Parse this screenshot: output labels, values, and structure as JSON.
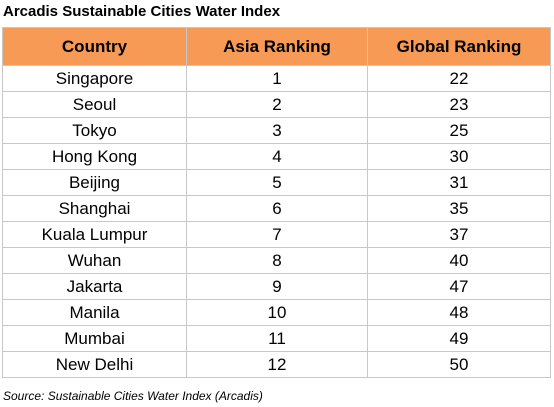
{
  "title": "Arcadis Sustainable Cities Water Index",
  "table": {
    "header": [
      "Country",
      "Asia Ranking",
      "Global Ranking"
    ],
    "rows": [
      [
        "Singapore",
        1,
        22
      ],
      [
        "Seoul",
        2,
        23
      ],
      [
        "Tokyo",
        3,
        25
      ],
      [
        "Hong Kong",
        4,
        30
      ],
      [
        "Beijing",
        5,
        31
      ],
      [
        "Shanghai",
        6,
        35
      ],
      [
        "Kuala Lumpur",
        7,
        37
      ],
      [
        "Wuhan",
        8,
        40
      ],
      [
        "Jakarta",
        9,
        47
      ],
      [
        "Manila",
        10,
        48
      ],
      [
        "Mumbai",
        11,
        49
      ],
      [
        "New Delhi",
        12,
        50
      ]
    ]
  },
  "source": "Source: Sustainable Cities Water Index (Arcadis)"
}
